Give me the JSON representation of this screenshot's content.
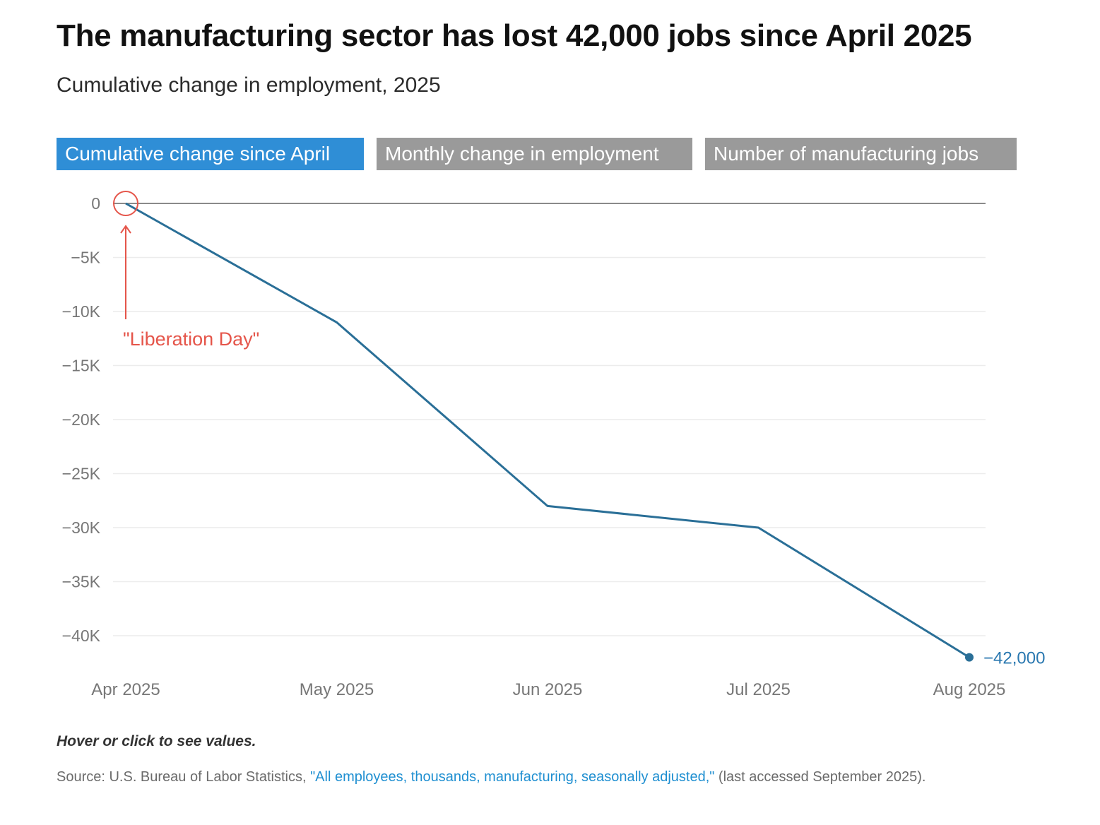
{
  "header": {
    "title": "The manufacturing sector has lost 42,000 jobs since April 2025",
    "subtitle": "Cumulative change in employment, 2025"
  },
  "tabs": [
    {
      "label": "Cumulative change since April",
      "active": true
    },
    {
      "label": "Monthly change in employment",
      "active": false
    },
    {
      "label": "Number of manufacturing jobs",
      "active": false
    }
  ],
  "colors": {
    "line": "#2a6f97",
    "active_tab": "#2f8ed6",
    "inactive_tab": "#9a9a9a",
    "annotation": "#e5554a",
    "end_label": "#2a78b0"
  },
  "chart_data": {
    "type": "line",
    "categories": [
      "Apr 2025",
      "May 2025",
      "Jun 2025",
      "Jul 2025",
      "Aug 2025"
    ],
    "values": [
      0,
      -11000,
      -28000,
      -30000,
      -42000
    ],
    "ylim": [
      -43000,
      0
    ],
    "yticks": [
      0,
      -5000,
      -10000,
      -15000,
      -20000,
      -25000,
      -30000,
      -35000,
      -40000
    ],
    "ytick_labels": [
      "0",
      "−5K",
      "−10K",
      "−15K",
      "−20K",
      "−25K",
      "−30K",
      "−35K",
      "−40K"
    ],
    "end_label": "−42,000",
    "annotation": {
      "text": "\"Liberation Day\"",
      "category": "Apr 2025"
    },
    "grid": true
  },
  "footer": {
    "hint": "Hover or click to see values.",
    "source_prefix": "Source: U.S. Bureau of Labor Statistics, ",
    "source_link": "\"All employees, thousands, manufacturing, seasonally adjusted,\"",
    "source_suffix": " (last accessed September 2025)."
  }
}
